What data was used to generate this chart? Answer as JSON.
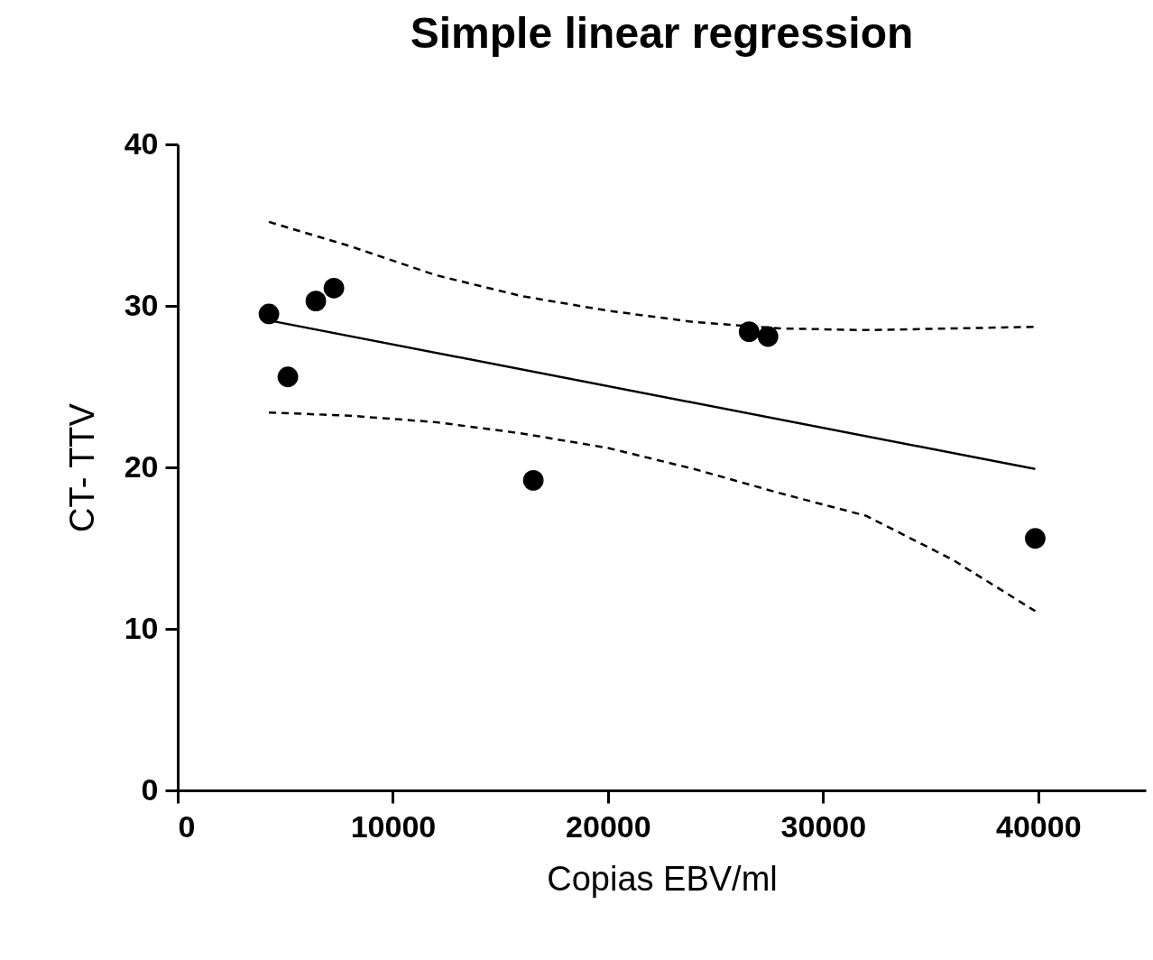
{
  "chart_data": {
    "type": "scatter",
    "title": "Simple linear regression",
    "xlabel": "Copias EBV/ml",
    "ylabel": "CT- TTV",
    "xlim": [
      0,
      45000
    ],
    "xticks": [
      0,
      10000,
      20000,
      30000,
      40000
    ],
    "ylim": [
      0,
      40
    ],
    "yticks": [
      0,
      10,
      20,
      30,
      40
    ],
    "grid": false,
    "series": [
      {
        "type": "scatter",
        "color": "#000000",
        "marker": "circle",
        "x": [
          4240,
          5120,
          6420,
          7260,
          16530,
          26560,
          27440,
          39860
        ],
        "values": [
          29.5,
          25.6,
          30.3,
          31.1,
          19.2,
          28.4,
          28.1,
          15.6
        ]
      },
      {
        "type": "line",
        "color": "#000000",
        "line_style": "solid",
        "x": [
          4240,
          39860
        ],
        "values": [
          29.1,
          19.9
        ]
      },
      {
        "type": "line",
        "color": "#000000",
        "line_style": "dashed",
        "x": [
          4240,
          8000,
          12000,
          16000,
          20000,
          24000,
          28000,
          32000,
          36000,
          39860
        ],
        "values": [
          35.2,
          33.7,
          31.9,
          30.6,
          29.7,
          29.0,
          28.6,
          28.5,
          28.6,
          28.7
        ]
      },
      {
        "type": "line",
        "color": "#000000",
        "line_style": "dashed",
        "x": [
          4240,
          8000,
          12000,
          16000,
          20000,
          24000,
          28000,
          32000,
          36000,
          39860
        ],
        "values": [
          23.4,
          23.2,
          22.8,
          22.1,
          21.2,
          19.9,
          18.4,
          17.0,
          14.3,
          11.1
        ]
      }
    ]
  }
}
